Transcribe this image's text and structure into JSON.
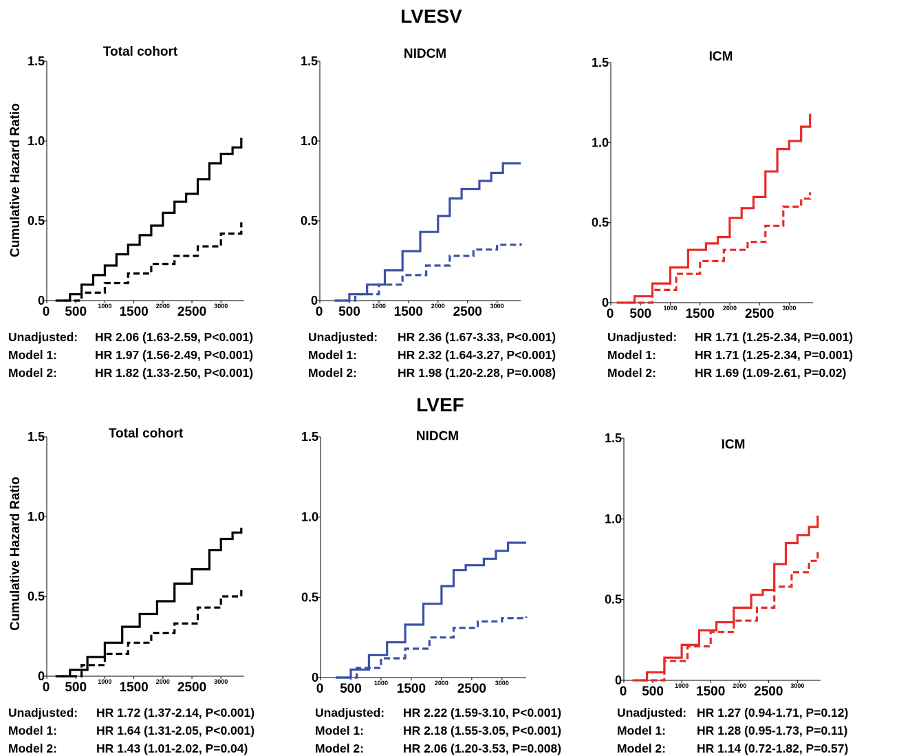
{
  "sections": [
    {
      "title": "LVESV"
    },
    {
      "title": "LVEF"
    }
  ],
  "colors": {
    "total": "#000000",
    "nidcm": "#3b52a8",
    "icm": "#ea2a2a"
  },
  "chart_data": [
    {
      "type": "line",
      "group": "LVESV",
      "title": "Total cohort",
      "ylabel": "Cumulative Hazard Ratio",
      "yticks": [
        "0",
        "0.5",
        "1.0",
        "1.5"
      ],
      "ylim": [
        0,
        1.5
      ],
      "xticks_large": [
        "0",
        "500",
        "1500",
        "2500"
      ],
      "xticks_small": [
        "1000",
        "2000",
        "3000"
      ],
      "xlim": [
        0,
        3400
      ],
      "series": [
        {
          "style": "solid",
          "x": [
            150,
            400,
            600,
            800,
            1000,
            1200,
            1400,
            1600,
            1800,
            2000,
            2200,
            2400,
            2600,
            2800,
            3000,
            3200,
            3350
          ],
          "y": [
            0.0,
            0.04,
            0.1,
            0.16,
            0.22,
            0.29,
            0.35,
            0.41,
            0.47,
            0.55,
            0.62,
            0.67,
            0.76,
            0.86,
            0.92,
            0.96,
            1.02
          ]
        },
        {
          "style": "dashed",
          "x": [
            300,
            600,
            1000,
            1400,
            1800,
            2200,
            2600,
            3000,
            3350
          ],
          "y": [
            0.0,
            0.05,
            0.11,
            0.17,
            0.23,
            0.28,
            0.34,
            0.42,
            0.49
          ]
        }
      ],
      "stats": [
        {
          "label": "Unadjusted:",
          "value": "HR 2.06 (1.63-2.59, P<0.001)"
        },
        {
          "label": "Model 1:",
          "value": "HR 1.97 (1.56-2.49, P<0.001)"
        },
        {
          "label": "Model 2:",
          "value": "HR 1.82 (1.33-2.50, P<0.001)"
        }
      ]
    },
    {
      "type": "line",
      "group": "LVESV",
      "title": "NIDCM",
      "yticks": [
        "0",
        "0.5",
        "1.0",
        "1.5"
      ],
      "ylim": [
        0,
        1.5
      ],
      "xticks_large": [
        "0",
        "500",
        "1500",
        "2500"
      ],
      "xticks_small": [
        "1000",
        "2000",
        "3000"
      ],
      "xlim": [
        0,
        3400
      ],
      "series": [
        {
          "style": "solid",
          "x": [
            250,
            500,
            800,
            1100,
            1400,
            1700,
            2000,
            2200,
            2400,
            2700,
            2900,
            3100,
            3400
          ],
          "y": [
            0.0,
            0.04,
            0.1,
            0.19,
            0.31,
            0.43,
            0.53,
            0.64,
            0.7,
            0.75,
            0.8,
            0.86,
            0.86
          ]
        },
        {
          "style": "dashed",
          "x": [
            250,
            600,
            1000,
            1400,
            1800,
            2200,
            2600,
            3000,
            3400
          ],
          "y": [
            0.0,
            0.04,
            0.1,
            0.16,
            0.22,
            0.28,
            0.32,
            0.35,
            0.36
          ]
        }
      ],
      "stats": [
        {
          "label": "Unadjusted:",
          "value": "HR 2.36 (1.67-3.33, P<0.001)"
        },
        {
          "label": "Model 1:",
          "value": "HR 2.32 (1.64-3.27, P<0.001)"
        },
        {
          "label": "Model 2:",
          "value": "HR 1.98 (1.20-2.28, P=0.008)"
        }
      ]
    },
    {
      "type": "line",
      "group": "LVESV",
      "title": "ICM",
      "yticks": [
        "0",
        "0.5",
        "1.0",
        "1.5"
      ],
      "ylim": [
        0,
        1.5
      ],
      "xticks_large": [
        "0",
        "500",
        "1500",
        "2500"
      ],
      "xticks_small": [
        "1000",
        "2000",
        "3000"
      ],
      "xlim": [
        0,
        3400
      ],
      "series": [
        {
          "style": "solid",
          "x": [
            100,
            400,
            700,
            1000,
            1300,
            1600,
            1800,
            2000,
            2200,
            2400,
            2600,
            2800,
            3000,
            3200,
            3350
          ],
          "y": [
            0.0,
            0.04,
            0.12,
            0.22,
            0.33,
            0.37,
            0.41,
            0.53,
            0.59,
            0.66,
            0.82,
            0.96,
            1.01,
            1.1,
            1.18
          ]
        },
        {
          "style": "dashed",
          "x": [
            300,
            700,
            1100,
            1500,
            1900,
            2300,
            2600,
            2900,
            3200,
            3350
          ],
          "y": [
            0.0,
            0.08,
            0.18,
            0.26,
            0.33,
            0.38,
            0.48,
            0.6,
            0.65,
            0.69
          ]
        }
      ],
      "stats": [
        {
          "label": "Unadjusted:",
          "value": "HR 1.71 (1.25-2.34, P=0.001)"
        },
        {
          "label": "Model 1:",
          "value": "HR 1.71 (1.25-2.34, P=0.001)"
        },
        {
          "label": "Model 2:",
          "value": "HR 1.69 (1.09-2.61, P=0.02)"
        }
      ]
    },
    {
      "type": "line",
      "group": "LVEF",
      "title": "Total cohort",
      "ylabel": "Cumulative Hazard Ratio",
      "yticks": [
        "0",
        "0.5",
        "1.0",
        "1.5"
      ],
      "ylim": [
        0,
        1.5
      ],
      "xticks_large": [
        "0",
        "500",
        "1500",
        "2500"
      ],
      "xticks_small": [
        "1000",
        "2000",
        "3000"
      ],
      "xlim": [
        0,
        3400
      ],
      "series": [
        {
          "style": "solid",
          "x": [
            150,
            400,
            700,
            1000,
            1300,
            1600,
            1900,
            2200,
            2500,
            2800,
            3000,
            3200,
            3350
          ],
          "y": [
            0.0,
            0.04,
            0.12,
            0.21,
            0.31,
            0.39,
            0.47,
            0.58,
            0.67,
            0.79,
            0.86,
            0.9,
            0.93
          ]
        },
        {
          "style": "dashed",
          "x": [
            250,
            600,
            1000,
            1400,
            1800,
            2200,
            2600,
            3000,
            3350
          ],
          "y": [
            0.0,
            0.07,
            0.14,
            0.21,
            0.27,
            0.33,
            0.43,
            0.5,
            0.55
          ]
        }
      ],
      "stats": [
        {
          "label": "Unadjusted:",
          "value": "HR 1.72 (1.37-2.14, P<0.001)"
        },
        {
          "label": "Model 1:",
          "value": "HR 1.64 (1.31-2.05, P<0.001)"
        },
        {
          "label": "Model 2:",
          "value": "HR 1.43 (1.01-2.02, P=0.04)"
        }
      ]
    },
    {
      "type": "line",
      "group": "LVEF",
      "title": "NIDCM",
      "yticks": [
        "0",
        "0.5",
        "1.0",
        "1.5"
      ],
      "ylim": [
        0,
        1.5
      ],
      "xticks_large": [
        "0",
        "500",
        "1500",
        "2500"
      ],
      "xticks_small": [
        "1000",
        "2000",
        "3000"
      ],
      "xlim": [
        0,
        3400
      ],
      "series": [
        {
          "style": "solid",
          "x": [
            250,
            500,
            800,
            1100,
            1400,
            1700,
            2000,
            2200,
            2400,
            2700,
            2900,
            3100,
            3400
          ],
          "y": [
            0.0,
            0.05,
            0.14,
            0.22,
            0.33,
            0.46,
            0.57,
            0.67,
            0.7,
            0.74,
            0.79,
            0.84,
            0.84
          ]
        },
        {
          "style": "dashed",
          "x": [
            250,
            600,
            1000,
            1400,
            1800,
            2200,
            2600,
            3000,
            3400
          ],
          "y": [
            0.0,
            0.06,
            0.12,
            0.18,
            0.25,
            0.31,
            0.35,
            0.37,
            0.38
          ]
        }
      ],
      "stats": [
        {
          "label": "Unadjusted:",
          "value": "HR 2.22 (1.59-3.10, P<0.001)"
        },
        {
          "label": "Model 1:",
          "value": "HR 2.18 (1.55-3.05, P<0.001)"
        },
        {
          "label": "Model 2:",
          "value": "HR 2.06 (1.20-3.53, P=0.008)"
        }
      ]
    },
    {
      "type": "line",
      "group": "LVEF",
      "title": "ICM",
      "yticks": [
        "0",
        "0.5",
        "1.0",
        "1.5"
      ],
      "ylim": [
        0,
        1.5
      ],
      "xticks_large": [
        "0",
        "500",
        "1500",
        "2500"
      ],
      "xticks_small": [
        "1000",
        "2000",
        "3000"
      ],
      "xlim": [
        0,
        3400
      ],
      "series": [
        {
          "style": "solid",
          "x": [
            150,
            400,
            700,
            1000,
            1300,
            1600,
            1900,
            2200,
            2400,
            2600,
            2800,
            3000,
            3200,
            3350
          ],
          "y": [
            0.0,
            0.05,
            0.14,
            0.22,
            0.31,
            0.36,
            0.45,
            0.53,
            0.56,
            0.72,
            0.85,
            0.9,
            0.95,
            1.02
          ]
        },
        {
          "style": "dashed",
          "x": [
            300,
            700,
            1100,
            1500,
            1900,
            2300,
            2600,
            2900,
            3200,
            3350
          ],
          "y": [
            0.0,
            0.12,
            0.21,
            0.3,
            0.37,
            0.45,
            0.58,
            0.67,
            0.74,
            0.8
          ]
        }
      ],
      "stats": [
        {
          "label": "Unadjusted:",
          "value": "HR 1.27 (0.94-1.71, P=0.12)"
        },
        {
          "label": "Model 1:",
          "value": "HR 1.28 (0.95-1.73, P=0.11)"
        },
        {
          "label": "Model 2:",
          "value": "HR 1.14 (0.72-1.82, P=0.57)"
        }
      ]
    }
  ]
}
